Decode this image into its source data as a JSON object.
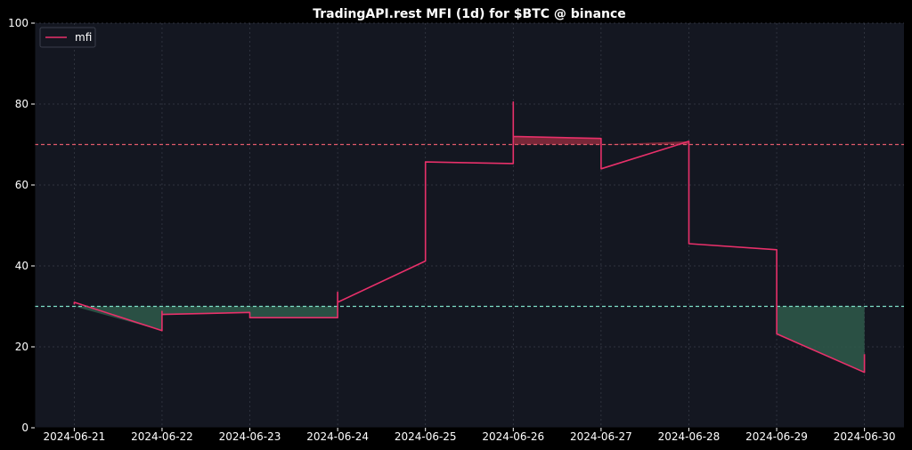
{
  "chart_data": {
    "type": "line",
    "title": "TradingAPI.rest MFI (1d) for $BTC @ binance",
    "xlabel": "",
    "ylabel": "",
    "ylim": [
      0,
      100
    ],
    "yticks": [
      0,
      20,
      40,
      60,
      80,
      100
    ],
    "ytick_labels": [
      "0",
      "20",
      "40",
      "60",
      "80",
      "100"
    ],
    "xlim": [
      -0.45,
      9.45
    ],
    "xticks": [
      0,
      1,
      2,
      3,
      4,
      5,
      6,
      7,
      8,
      9
    ],
    "xtick_labels": [
      "2024-06-21",
      "2024-06-22",
      "2024-06-23",
      "2024-06-24",
      "2024-06-25",
      "2024-06-26",
      "2024-06-27",
      "2024-06-28",
      "2024-06-29",
      "2024-06-30"
    ],
    "grid": true,
    "legend_position": "top-left",
    "colors": {
      "background": "#000000",
      "plot_background": "#141721",
      "line": "#e8306a",
      "overbought_line": "#e05a6a",
      "oversold_line": "#7ee0c8",
      "overbought_fill": "#8b2a3c",
      "oversold_fill": "#2e5a4a",
      "grid": "#3a3e4a",
      "text": "#ffffff"
    },
    "thresholds": {
      "overbought": 70,
      "oversold": 30
    },
    "series": [
      {
        "name": "mfi",
        "points": [
          [
            0,
            30.5
          ],
          [
            0,
            31
          ],
          [
            1,
            24
          ],
          [
            1,
            28.8
          ],
          [
            1,
            28
          ],
          [
            2,
            28.5
          ],
          [
            2,
            27.2
          ],
          [
            3,
            27.2
          ],
          [
            3,
            33.5
          ],
          [
            3,
            31
          ],
          [
            4,
            41.2
          ],
          [
            4,
            65.7
          ],
          [
            5,
            65.3
          ],
          [
            5,
            80.5
          ],
          [
            5,
            72
          ],
          [
            6,
            71.5
          ],
          [
            6,
            64
          ],
          [
            7,
            70.8
          ],
          [
            7,
            45.5
          ],
          [
            8,
            44
          ],
          [
            8,
            23.2
          ],
          [
            9,
            13.7
          ],
          [
            9,
            18.2
          ]
        ]
      }
    ]
  }
}
